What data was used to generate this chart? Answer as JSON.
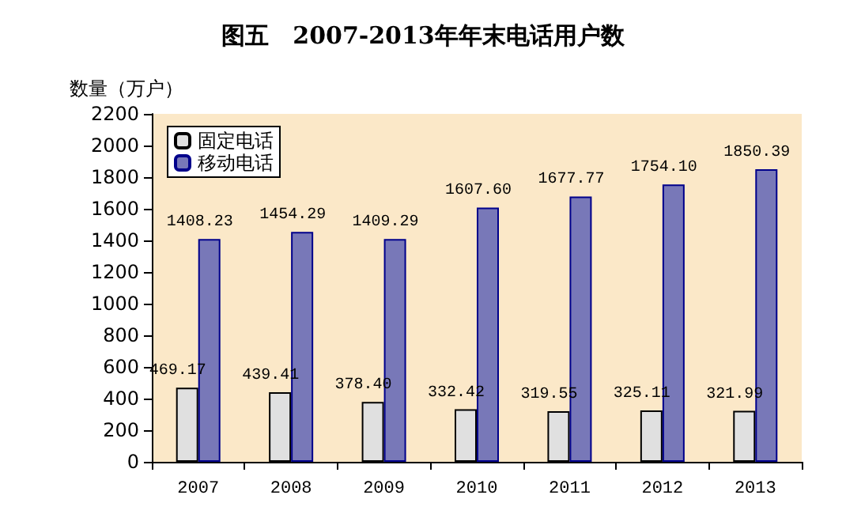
{
  "chart_data": {
    "type": "bar",
    "title": "图五　2007-2013年年末电话用户数",
    "ylabel": "数量（万户）",
    "categories": [
      "2007",
      "2008",
      "2009",
      "2010",
      "2011",
      "2012",
      "2013"
    ],
    "series": [
      {
        "name": "固定电话",
        "color": "#e0e0e0",
        "values": [
          469.17,
          439.41,
          378.4,
          332.42,
          319.55,
          325.11,
          321.99
        ],
        "value_labels": [
          "469.17",
          "439.41",
          "378.40",
          "332.42",
          "319.55",
          "325.11",
          "321.99"
        ]
      },
      {
        "name": "移动电话",
        "color": "#7878b8",
        "values": [
          1408.23,
          1454.29,
          1409.29,
          1607.6,
          1677.77,
          1754.1,
          1850.39
        ],
        "value_labels": [
          "1408.23",
          "1454.29",
          "1409.29",
          "1607.60",
          "1677.77",
          "1754.10",
          "1850.39"
        ]
      }
    ],
    "ylim": [
      0,
      2200
    ],
    "yticks": [
      0,
      200,
      400,
      600,
      800,
      1000,
      1200,
      1400,
      1600,
      1800,
      2000,
      2200
    ],
    "grid": false,
    "legend": "top left"
  }
}
